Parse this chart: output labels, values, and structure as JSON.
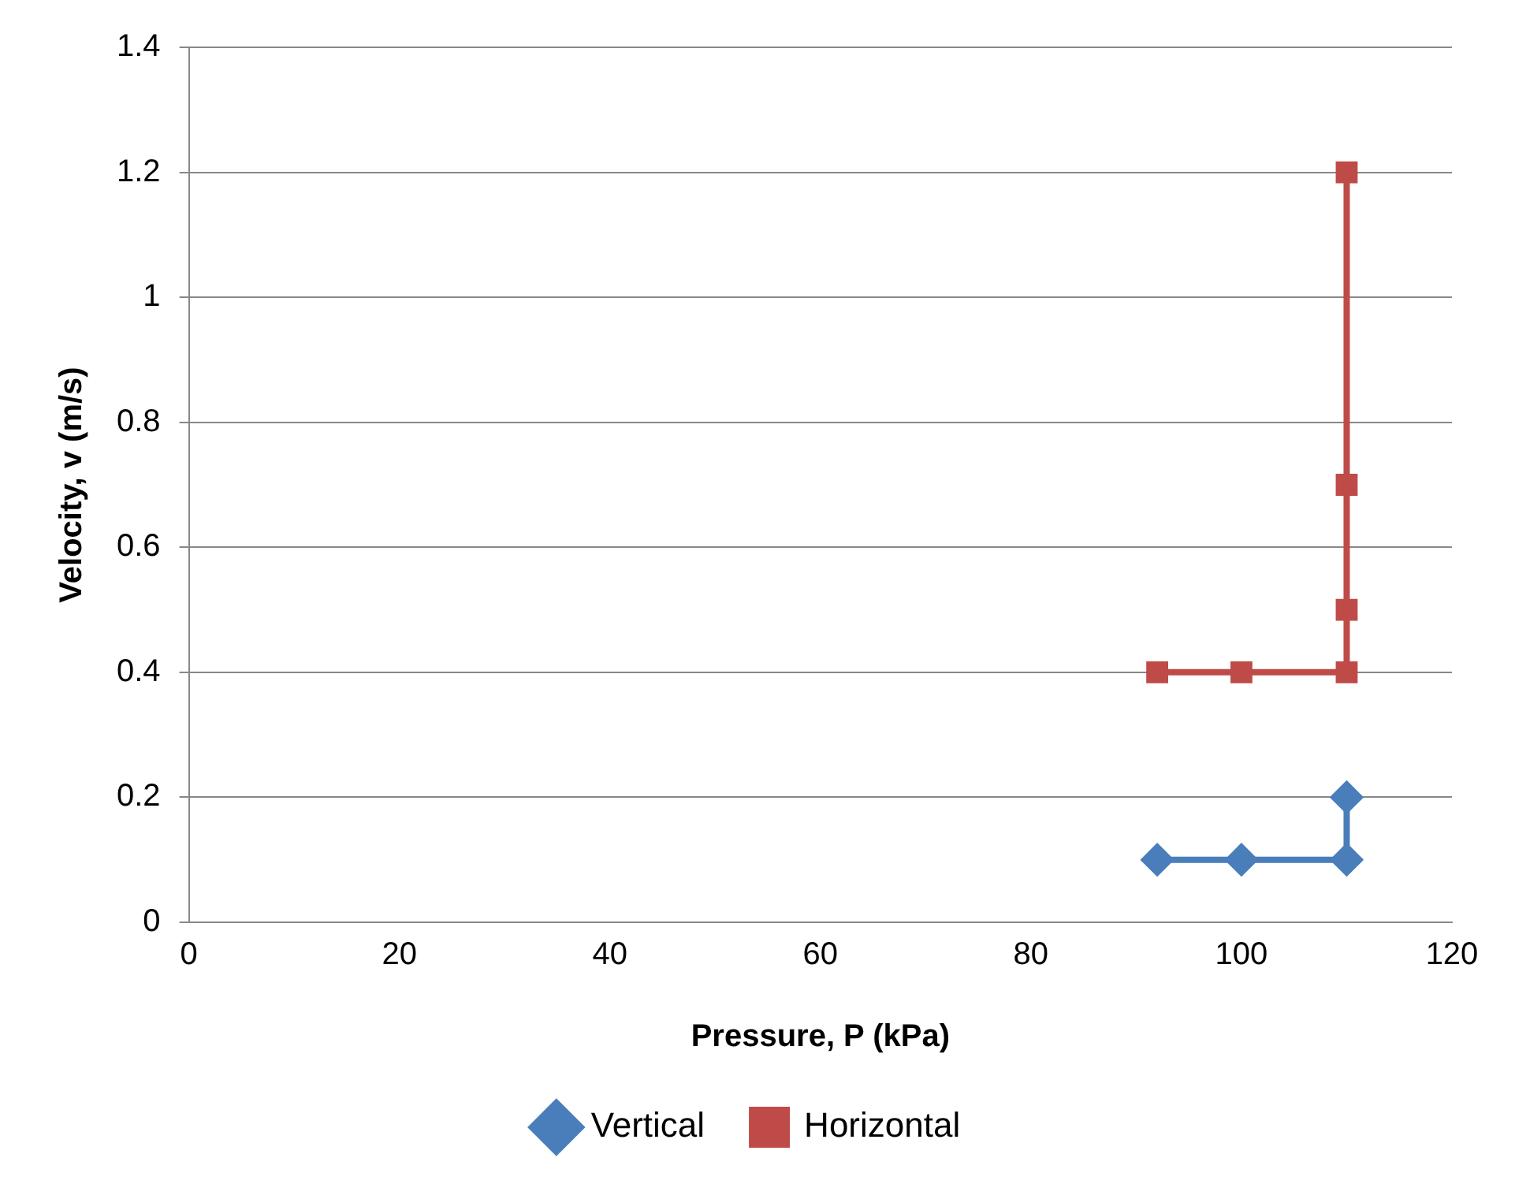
{
  "chart_data": {
    "type": "line",
    "xlabel": "Pressure, P (kPa)",
    "ylabel": "Velocity, v (m/s)",
    "series": [
      {
        "name": "Vertical",
        "color": "#4a7ebb",
        "marker": "diamond",
        "x": [
          92,
          100,
          110,
          110
        ],
        "values": [
          0.1,
          0.1,
          0.1,
          0.2
        ]
      },
      {
        "name": "Horizontal",
        "color": "#be4b48",
        "marker": "square",
        "x": [
          92,
          100,
          110,
          110,
          110,
          110
        ],
        "values": [
          0.4,
          0.4,
          0.4,
          0.5,
          0.7,
          1.2
        ]
      }
    ],
    "xlim": [
      0,
      120
    ],
    "xticks": [
      0,
      20,
      40,
      60,
      80,
      100,
      120
    ],
    "ylim": [
      0,
      1.4
    ],
    "yticks": [
      0,
      0.2,
      0.4,
      0.6,
      0.8,
      1,
      1.2,
      1.4
    ],
    "grid": "y",
    "legend": "bottom"
  }
}
